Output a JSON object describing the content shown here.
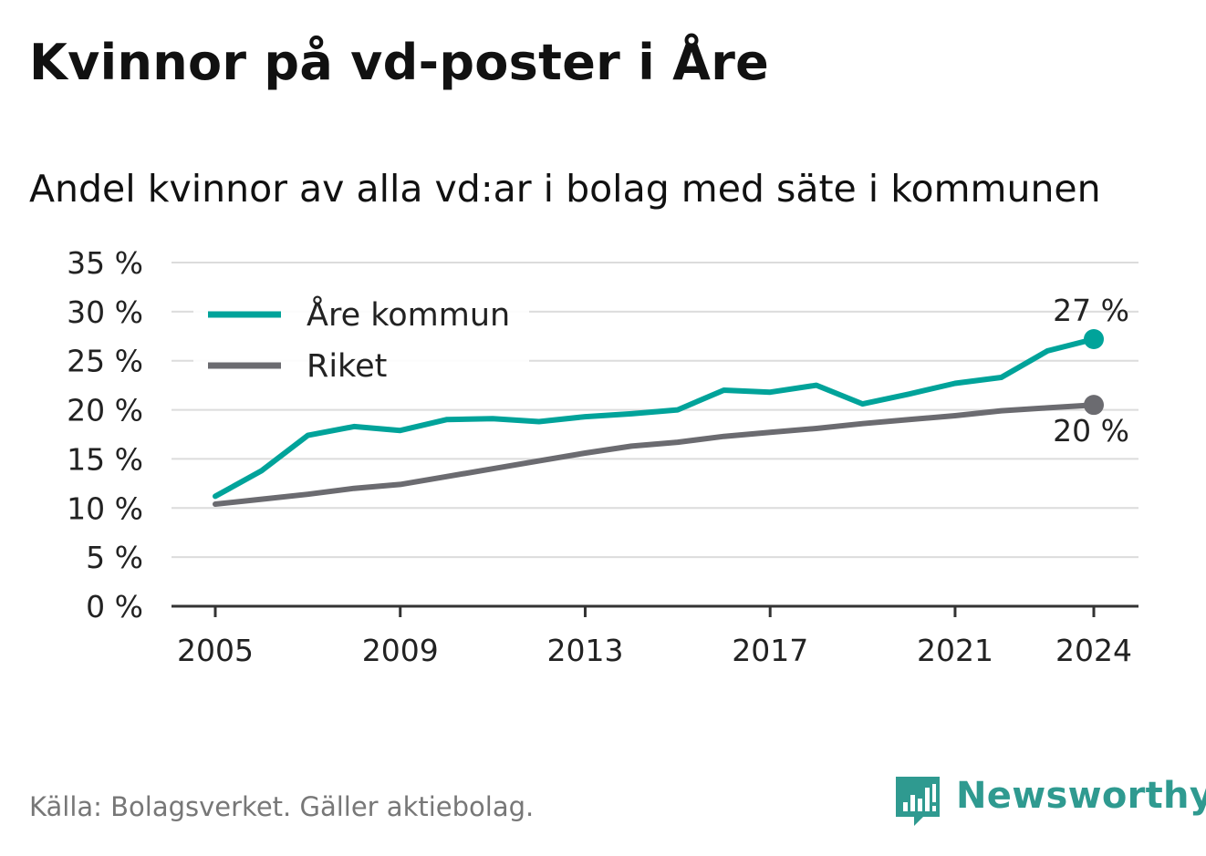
{
  "title": "Kvinnor på vd-poster i Åre",
  "subtitle": "Andel kvinnor av alla vd:ar i bolag med säte i kommunen",
  "source": "Källa: Bolagsverket. Gäller aktiebolag.",
  "brand": {
    "name": "Newsworthy",
    "icon": "bar-chart-speech-bubble-icon",
    "color": "#2f9a90"
  },
  "chart_data": {
    "type": "line",
    "x": [
      2005,
      2006,
      2007,
      2008,
      2009,
      2010,
      2011,
      2012,
      2013,
      2014,
      2015,
      2016,
      2017,
      2018,
      2019,
      2020,
      2021,
      2022,
      2023,
      2024
    ],
    "x_ticks": [
      "2005",
      "2009",
      "2013",
      "2017",
      "2021",
      "2024"
    ],
    "x_tick_values": [
      2005,
      2009,
      2013,
      2017,
      2021,
      2024
    ],
    "y_ticks": [
      "0 %",
      "5 %",
      "10 %",
      "15 %",
      "20 %",
      "25 %",
      "30 %",
      "35 %"
    ],
    "y_tick_values": [
      0,
      5,
      10,
      15,
      20,
      25,
      30,
      35
    ],
    "ylim": [
      0,
      35
    ],
    "grid": true,
    "legend_position": "top-left",
    "series": [
      {
        "name": "Åre kommun",
        "color": "#00a39a",
        "values": [
          11.2,
          13.8,
          17.4,
          18.3,
          17.9,
          19.0,
          19.1,
          18.8,
          19.3,
          19.6,
          20.0,
          22.0,
          21.8,
          22.5,
          20.6,
          21.6,
          22.7,
          23.3,
          26.0,
          27.2
        ],
        "end_label": "27 %"
      },
      {
        "name": "Riket",
        "color": "#6b6b70",
        "values": [
          10.4,
          10.9,
          11.4,
          12.0,
          12.4,
          13.2,
          14.0,
          14.8,
          15.6,
          16.3,
          16.7,
          17.3,
          17.7,
          18.1,
          18.6,
          19.0,
          19.4,
          19.9,
          20.2,
          20.5
        ],
        "end_label": "20 %"
      }
    ]
  }
}
